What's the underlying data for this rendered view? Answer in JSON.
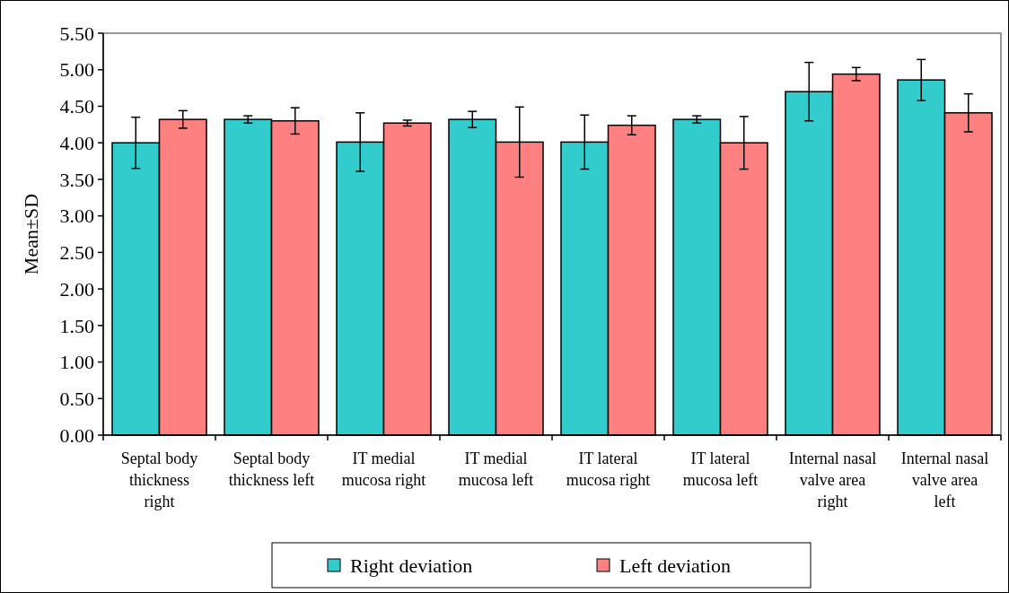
{
  "chart_data": {
    "type": "bar",
    "ylabel": "Mean±SD",
    "categories": [
      "Septal body thickness right",
      "Septal body thickness left",
      "IT medial mucosa right",
      "IT medial mucosa left",
      "IT lateral mucosa right",
      "IT lateral mucosa left",
      "Internal nasal valve area right",
      "Internal nasal valve area left"
    ],
    "series": [
      {
        "name": "Right deviation",
        "color": "#33cccc",
        "values": [
          4.0,
          4.32,
          4.01,
          4.32,
          4.01,
          4.32,
          4.7,
          4.86
        ],
        "errors": [
          0.35,
          0.05,
          0.4,
          0.11,
          0.37,
          0.05,
          0.4,
          0.28
        ]
      },
      {
        "name": "Left deviation",
        "color": "#ff8080",
        "values": [
          4.32,
          4.3,
          4.27,
          4.01,
          4.24,
          4.0,
          4.94,
          4.41
        ],
        "errors": [
          0.12,
          0.18,
          0.04,
          0.48,
          0.13,
          0.36,
          0.09,
          0.26
        ]
      }
    ],
    "ylim": [
      0,
      5.5
    ],
    "yticks": [
      {
        "value": 0,
        "label": "0.00"
      },
      {
        "value": 0.5,
        "label": "0.50"
      },
      {
        "value": 1,
        "label": "1.00"
      },
      {
        "value": 1.5,
        "label": "1.50"
      },
      {
        "value": 2,
        "label": "2.00"
      },
      {
        "value": 2.5,
        "label": "2.50"
      },
      {
        "value": 3,
        "label": "3.00"
      },
      {
        "value": 3.5,
        "label": "3.50"
      },
      {
        "value": 4,
        "label": "4.00"
      },
      {
        "value": 4.5,
        "label": "4.50"
      },
      {
        "value": 5,
        "label": "5.00"
      },
      {
        "value": 5.5,
        "label": "5.50"
      }
    ],
    "grid": false,
    "legend": "bottom"
  }
}
